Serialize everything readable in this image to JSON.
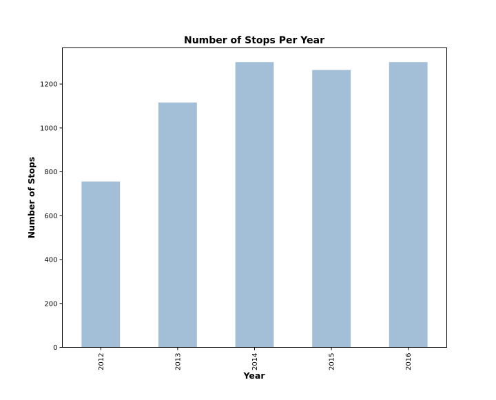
{
  "chart_data": {
    "type": "bar",
    "title": "Number of Stops Per Year",
    "xlabel": "Year",
    "ylabel": "Number of Stops",
    "categories": [
      "2012",
      "2013",
      "2014",
      "2015",
      "2016"
    ],
    "values": [
      756,
      1116,
      1300,
      1264,
      1300
    ],
    "ylim": [
      0,
      1365
    ],
    "yticks": [
      0,
      200,
      400,
      600,
      800,
      1000,
      1200
    ],
    "grid": false,
    "legend": "none",
    "bar_color": "#a3bfd8",
    "x_tick_rotation": "vertical"
  }
}
